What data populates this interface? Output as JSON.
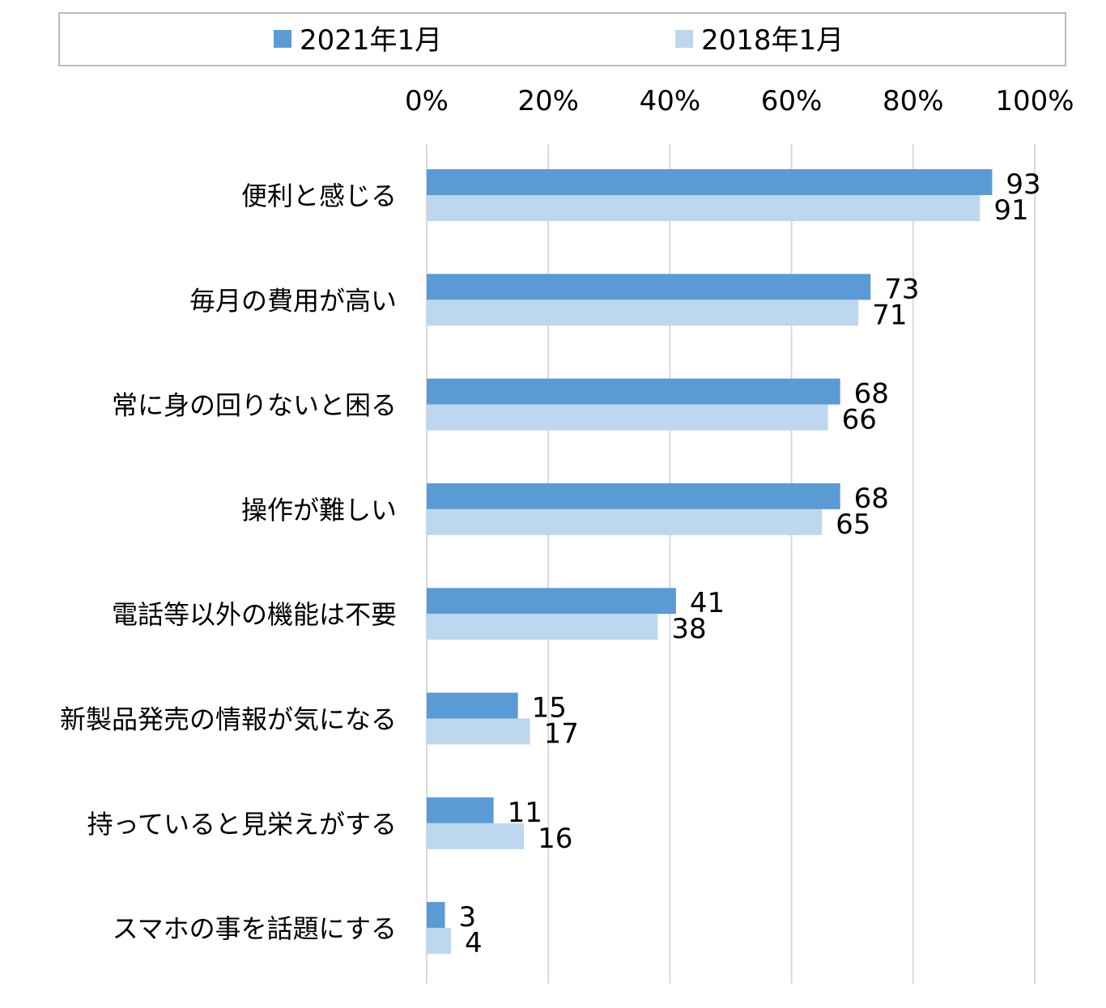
{
  "chart_data": {
    "type": "bar",
    "orientation": "horizontal",
    "categories": [
      "便利と感じる",
      "毎月の費用が高い",
      "常に身の回りないと困る",
      "操作が難しい",
      "電話等以外の機能は不要",
      "新製品発売の情報が気になる",
      "持っていると見栄えがする",
      "スマホの事を話題にする"
    ],
    "series": [
      {
        "name": "2021年1月",
        "color": "#5b9bd5",
        "values": [
          93,
          73,
          68,
          68,
          41,
          15,
          11,
          3
        ]
      },
      {
        "name": "2018年1月",
        "color": "#bdd7ee",
        "values": [
          91,
          71,
          66,
          65,
          38,
          17,
          16,
          4
        ]
      }
    ],
    "xlim": [
      0,
      100
    ],
    "ticks": [
      "0%",
      "20%",
      "40%",
      "60%",
      "80%",
      "100%"
    ],
    "tick_values": [
      0,
      20,
      40,
      60,
      80,
      100
    ],
    "grid": true,
    "legend_position": "top",
    "axis_position": "top"
  }
}
